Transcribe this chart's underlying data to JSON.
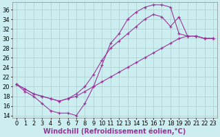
{
  "background_color": "#cceef0",
  "line_color": "#993399",
  "grid_color": "#aacccc",
  "xlabel": "Windchill (Refroidissement éolien,°C)",
  "xlabel_fontsize": 7.0,
  "tick_fontsize": 6.0,
  "xlim": [
    -0.5,
    23.5
  ],
  "ylim": [
    13.5,
    37.5
  ],
  "yticks": [
    14,
    16,
    18,
    20,
    22,
    24,
    26,
    28,
    30,
    32,
    34,
    36
  ],
  "xticks": [
    0,
    1,
    2,
    3,
    4,
    5,
    6,
    7,
    8,
    9,
    10,
    11,
    12,
    13,
    14,
    15,
    16,
    17,
    18,
    19,
    20,
    21,
    22,
    23
  ],
  "line1_x": [
    0,
    1,
    2,
    3,
    4,
    5,
    6,
    7,
    8,
    9,
    10,
    11,
    12,
    13,
    14,
    15,
    16,
    17,
    18,
    19,
    20,
    21,
    22,
    23
  ],
  "line1_y": [
    20.5,
    19.0,
    18.0,
    16.5,
    15.0,
    14.5,
    14.5,
    14.0,
    16.5,
    20.0,
    24.5,
    29.0,
    31.0,
    34.0,
    35.5,
    36.5,
    37.0,
    37.0,
    36.5,
    31.0,
    30.5,
    30.5,
    30.0,
    30.0
  ],
  "line2_x": [
    0,
    1,
    2,
    3,
    4,
    5,
    6,
    7,
    8,
    9,
    10,
    11,
    12,
    13,
    14,
    15,
    16,
    17,
    18,
    19,
    20,
    21,
    22,
    23
  ],
  "line2_y": [
    20.5,
    19.5,
    18.5,
    18.0,
    17.5,
    17.0,
    17.5,
    18.0,
    19.0,
    20.0,
    21.0,
    22.0,
    23.0,
    24.0,
    25.0,
    26.0,
    27.0,
    28.0,
    29.0,
    30.0,
    30.5,
    30.5,
    30.0,
    30.0
  ],
  "line3_x": [
    0,
    1,
    2,
    3,
    4,
    5,
    6,
    7,
    8,
    9,
    10,
    11,
    12,
    13,
    14,
    15,
    16,
    17,
    18,
    19,
    20,
    21,
    22,
    23
  ],
  "line3_y": [
    20.5,
    19.5,
    18.5,
    18.0,
    17.5,
    17.0,
    17.5,
    18.5,
    20.0,
    22.5,
    25.5,
    28.0,
    29.5,
    31.0,
    32.5,
    34.0,
    35.0,
    34.5,
    32.5,
    34.5,
    30.5,
    30.5,
    30.0,
    30.0
  ]
}
